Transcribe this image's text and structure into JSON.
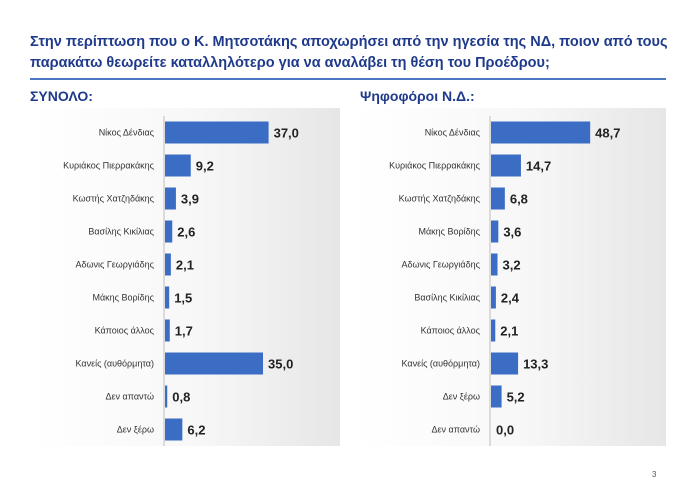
{
  "title": "Στην περίπτωση που ο Κ. Μητσοτάκης αποχωρήσει από την ηγεσία της ΝΔ, ποιον από τους παρακάτω θεωρείτε καταλληλότερο για να αναλάβει τη θέση του Προέδρου;",
  "page_number": "3",
  "colors": {
    "bar": "#3b6dc4",
    "title": "#1f3a8a"
  },
  "chart_data": [
    {
      "type": "bar",
      "orientation": "horizontal",
      "title": "ΣΥΝΟΛΟ:",
      "categories": [
        "Νίκος Δένδιας",
        "Κυριάκος Πιερρακάκης",
        "Κωστής Χατζηδάκης",
        "Βασίλης Κικίλιας",
        "Αδωνις Γεωργιάδης",
        "Μάκης Βορίδης",
        "Κάποιος άλλος",
        "Κανείς (αυθόρμητα)",
        "Δεν απαντώ",
        "Δεν ξέρω"
      ],
      "values": [
        37.0,
        9.2,
        3.9,
        2.6,
        2.1,
        1.5,
        1.7,
        35.0,
        0.8,
        6.2
      ],
      "value_labels": [
        "37,0",
        "9,2",
        "3,9",
        "2,6",
        "2,1",
        "1,5",
        "1,7",
        "35,0",
        "0,8",
        "6,2"
      ],
      "xlim": [
        0,
        40
      ]
    },
    {
      "type": "bar",
      "orientation": "horizontal",
      "title": "Ψηφοφόροι Ν.Δ.:",
      "categories": [
        "Νίκος Δένδιας",
        "Κυριάκος Πιερρακάκης",
        "Κωστής Χατζηδάκης",
        "Μάκης Βορίδης",
        "Αδωνις Γεωργιάδης",
        "Βασίλης Κικίλιας",
        "Κάποιος άλλος",
        "Κανείς (αυθόρμητα)",
        "Δεν ξέρω",
        "Δεν απαντώ"
      ],
      "values": [
        48.7,
        14.7,
        6.8,
        3.6,
        3.2,
        2.4,
        2.1,
        13.3,
        5.2,
        0.0
      ],
      "value_labels": [
        "48,7",
        "14,7",
        "6,8",
        "3,6",
        "3,2",
        "2,4",
        "2,1",
        "13,3",
        "5,2",
        "0,0"
      ],
      "xlim": [
        0,
        55
      ]
    }
  ]
}
